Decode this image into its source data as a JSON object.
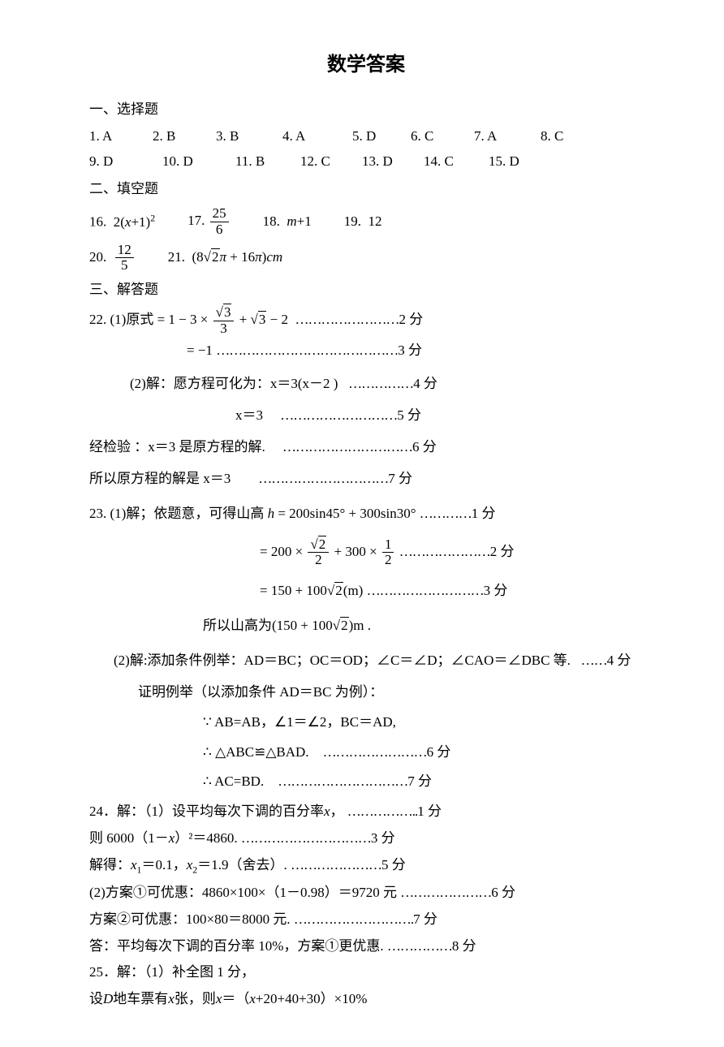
{
  "title": "数学答案",
  "sections": {
    "mc_title": "一、选择题",
    "fill_title": "二、填空题",
    "solve_title": "三、解答题"
  },
  "mc": [
    {
      "n": "1.",
      "a": "A"
    },
    {
      "n": "2.",
      "a": "B"
    },
    {
      "n": "3.",
      "a": "B"
    },
    {
      "n": "4.",
      "a": "A"
    },
    {
      "n": "5.",
      "a": "D"
    },
    {
      "n": "6.",
      "a": "C"
    },
    {
      "n": "7.",
      "a": "A"
    },
    {
      "n": "8.",
      "a": "C"
    },
    {
      "n": "9.",
      "a": "D"
    },
    {
      "n": "10.",
      "a": "D"
    },
    {
      "n": "11.",
      "a": "B"
    },
    {
      "n": "12.",
      "a": "C"
    },
    {
      "n": "13.",
      "a": "D"
    },
    {
      "n": "14.",
      "a": "C"
    },
    {
      "n": "15.",
      "a": "D"
    }
  ],
  "mc_widths_row1": [
    78,
    78,
    82,
    86,
    72,
    78,
    82,
    60
  ],
  "mc_widths_row2": [
    90,
    90,
    80,
    76,
    76,
    80,
    76
  ],
  "fill": {
    "q16": {
      "n": "16.",
      "expr_pre": "2(",
      "var": "x",
      "expr_post": "+1)",
      "pow": "2"
    },
    "q17": {
      "n": "17.",
      "num": "25",
      "den": "6"
    },
    "q18": {
      "n": "18.",
      "var": "m",
      "rest": "+1"
    },
    "q19": {
      "n": "19.",
      "val": "12"
    },
    "q20": {
      "n": "20.",
      "num": "12",
      "den": "5"
    },
    "q21": {
      "n": "21.",
      "open": "(",
      "coef1": "8",
      "rad1": "2",
      "mid": "π + 16π",
      ")": ")",
      "unit": "cm"
    }
  },
  "p22": {
    "label": "22. (1)原式",
    "eq": "= 1 − 3 ×",
    "frac_num": "3",
    "frac_rad": "√",
    "frac_den": "3",
    "mid": "+",
    "rad": "3",
    "tail": "− 2",
    "dots1": "……………………",
    "pts1": "2 分",
    "line2_eq": "= −1",
    "dots2": "……………………………………",
    "pts2": "3 分",
    "p2_label": "(2)解：愿方程可化为：x＝3(x－2 )",
    "dots3": "……………",
    "pts3": "4 分",
    "p2_line2": "x＝3",
    "dots4": "………………………",
    "pts4": "5 分",
    "check": "经检验 ：x＝3 是原方程的解.",
    "dots5": "…………………………",
    "pts5": "6 分",
    "final": "所以原方程的解是 x＝3",
    "dots6": "…………………………",
    "pts6": "7 分"
  },
  "p23": {
    "label": "23. (1)解；依题意，可得山高",
    "hvar": "h",
    "eq": "= 200sin45° + 300sin30°",
    "dots1": "…………",
    "pts1": "1 分",
    "l2_pre": "= 200 ×",
    "l2_num": "2",
    "l2_den": "2",
    "l2_mid": "+ 300 ×",
    "l2_num2": "1",
    "l2_den2": "2",
    "dots2": "…………………",
    "pts2": "2 分",
    "l3": "= 150 + 100",
    "l3_rad": "2",
    "l3_unit": "(m)",
    "dots3": "………………………",
    "pts3": "3 分",
    "final_pre": "所以山高为(150 + 100",
    "final_rad": "2",
    "final_post": ")m .",
    "p2_label": "(2)解:添加条件例举：AD＝BC；OC＝OD；∠C＝∠D；∠CAO＝∠DBC 等.",
    "dots4": "……",
    "pts4": "4 分",
    "proof": "证明例举（以添加条件 AD＝BC 为例）：",
    "s1": "∵ AB=AB，∠1＝∠2，BC＝AD,",
    "s2": "∴ △ABC≌△BAD.",
    "dots5": "……………………",
    "pts5": "6 分",
    "s3": "∴ AC=BD.",
    "dots6": "…………………………",
    "pts6": "7 分"
  },
  "p24": {
    "label": "24．解：（1）设平均每次下调的百分率",
    "var": "x",
    "comma": "，",
    "dots1": "……………..",
    "pts1": "1 分",
    "l2": "则 6000（1－",
    "var2": "x",
    "l2b": "）²＝4860.",
    "dots2": "…………………………",
    "pts2": "3 分",
    "l3_pre": "解得：",
    "x1": "x",
    "sub1": "1",
    "l3_mid": "＝0.1，",
    "x2": "x",
    "sub2": "2",
    "l3_tail": "＝1.9（舍去）.",
    "dots3": "…………………",
    "pts3": "5 分",
    "l4": "(2)方案①可优惠：4860×100×（1－0.98）＝9720 元",
    "dots4": "…………………",
    "pts4": "6 分",
    "l5": "方案②可优惠：100×80＝8000 元.",
    "dots5": "……………………….",
    "pts5": "7 分",
    "l6": "答：平均每次下调的百分率 10%，方案①更优惠.",
    "dots6": "……………",
    "pts6": "8 分"
  },
  "p25": {
    "label": "25．解：（1）补全图 1 分，",
    "l2_pre": "设",
    "dvar": "D",
    "l2_mid": "地车票有",
    "xvar": "x",
    "l2_mid2": "张，则",
    "xvar2": "x",
    "l2_mid3": "＝（",
    "xvar3": "x",
    "l2_tail": "+20+40+30）×10%"
  }
}
